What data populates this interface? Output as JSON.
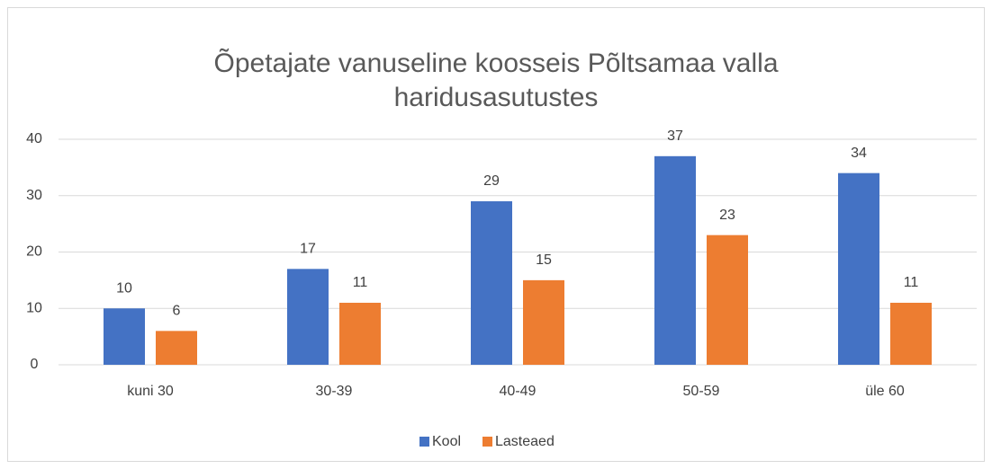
{
  "chart_data": {
    "type": "bar",
    "title": "Õpetajate vanuseline koosseis Põltsamaa valla haridusasutustes",
    "categories": [
      "kuni 30",
      "30-39",
      "40-49",
      "50-59",
      "üle 60"
    ],
    "series": [
      {
        "name": "Kool",
        "color": "#4472c4",
        "values": [
          10,
          17,
          29,
          37,
          34
        ]
      },
      {
        "name": "Lasteaed",
        "color": "#ed7d31",
        "values": [
          6,
          11,
          15,
          23,
          11
        ]
      }
    ],
    "ylim": [
      0,
      40
    ],
    "yticks": [
      0,
      10,
      20,
      30,
      40
    ],
    "grid": true,
    "legend": "bottom"
  }
}
